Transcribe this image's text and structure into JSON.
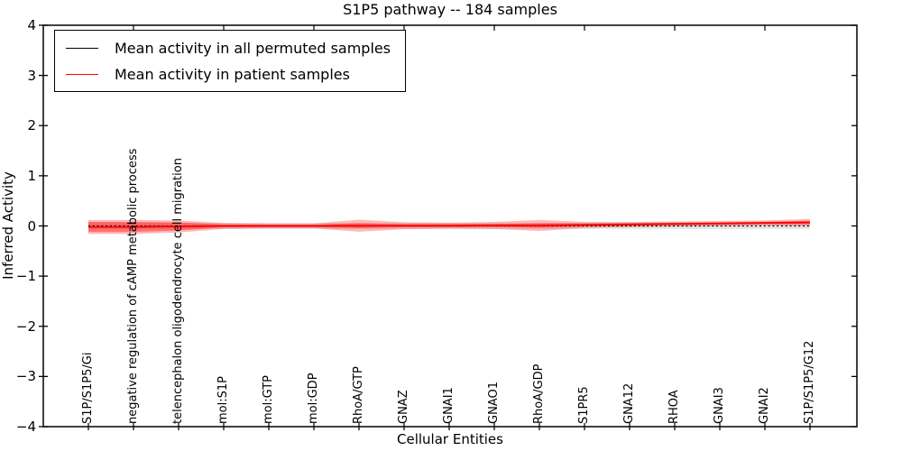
{
  "figure": {
    "title": "S1P5 pathway -- 184 samples"
  },
  "axes": {
    "xlabel": "Cellular Entities",
    "ylabel": "Inferred Activity"
  },
  "legend": {
    "position": "upper left",
    "items": [
      {
        "label": "Mean activity in all permuted samples",
        "color": "#000000"
      },
      {
        "label": "Mean activity in patient samples",
        "color": "#ff0000"
      }
    ]
  },
  "chart_data": {
    "type": "line",
    "title": "S1P5 pathway -- 184 samples",
    "xlabel": "Cellular Entities",
    "ylabel": "Inferred Activity",
    "ylim": [
      -4,
      4
    ],
    "xlim": [
      -1,
      17
    ],
    "yticks": [
      4,
      3,
      2,
      1,
      0,
      -1,
      -2,
      -3,
      -4
    ],
    "grid": false,
    "legend_position": "upper left",
    "categories": [
      "S1P/S1P5/Gi",
      "negative regulation of cAMP metabolic process",
      "telencephalon oligodendrocyte cell migration",
      "mol:S1P",
      "mol:GTP",
      "mol:GDP",
      "RhoA/GTP",
      "GNAZ",
      "GNAI1",
      "GNAO1",
      "RhoA/GDP",
      "S1PR5",
      "GNA12",
      "RHOA",
      "GNAI3",
      "GNAI2",
      "S1P/S1P5/G12"
    ],
    "series": [
      {
        "name": "Mean activity in all permuted samples",
        "color": "#000000",
        "linestyle": "dotted",
        "values": [
          0,
          0,
          0,
          0,
          0,
          0,
          0,
          0,
          0,
          0,
          0,
          0,
          0,
          0,
          0,
          0,
          0
        ],
        "band_halfwidth": [
          0.06,
          0.06,
          0.06,
          0.06,
          0.06,
          0.06,
          0.06,
          0.06,
          0.06,
          0.06,
          0.06,
          0.06,
          0.06,
          0.06,
          0.06,
          0.06,
          0.06
        ],
        "band_color": "#999999",
        "band_alpha": 0.25
      },
      {
        "name": "Mean activity in patient samples",
        "color": "#ff0000",
        "linestyle": "solid",
        "values": [
          -0.02,
          -0.02,
          -0.01,
          0.0,
          0.0,
          0.0,
          0.005,
          0.005,
          0.005,
          0.01,
          0.01,
          0.02,
          0.03,
          0.04,
          0.05,
          0.06,
          0.07
        ],
        "band_halfwidth": [
          0.14,
          0.14,
          0.12,
          0.06,
          0.05,
          0.05,
          0.12,
          0.07,
          0.06,
          0.07,
          0.11,
          0.06,
          0.05,
          0.05,
          0.05,
          0.05,
          0.07
        ],
        "band_inner_halfwidth": [
          0.1,
          0.1,
          0.08,
          0.03,
          0.025,
          0.025,
          0.05,
          0.03,
          0.03,
          0.03,
          0.045,
          0.03,
          0.025,
          0.025,
          0.025,
          0.025,
          0.035
        ],
        "band_color": "#ff0000",
        "band_alpha": 0.28
      }
    ]
  }
}
